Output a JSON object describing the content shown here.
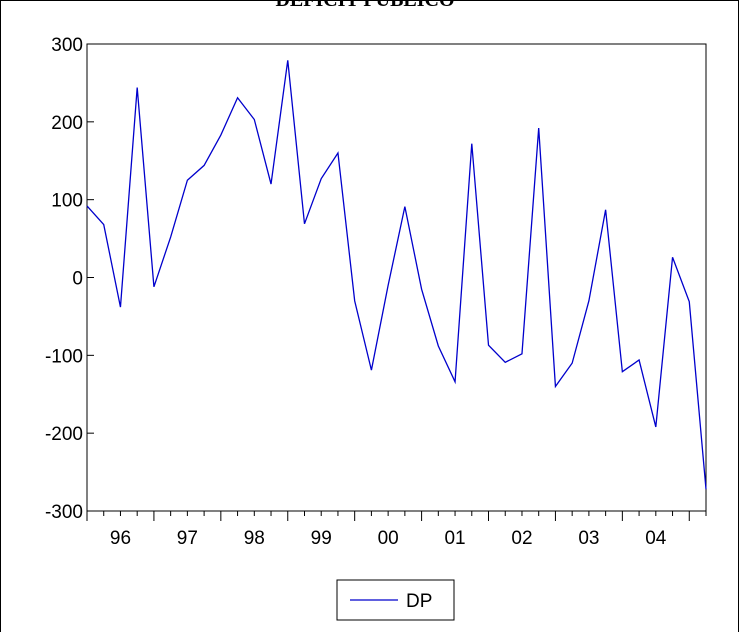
{
  "chart_data": {
    "type": "line",
    "title": "DEFICIT PUBLICO",
    "xlabel": "",
    "ylabel": "",
    "ylim": [
      -300,
      300
    ],
    "yticks": [
      300,
      200,
      100,
      0,
      -100,
      -200,
      -300
    ],
    "ytick_labels": [
      "300",
      "200",
      "100",
      "0",
      "-100",
      "-200",
      "-300"
    ],
    "xtick_labels": [
      "96",
      "97",
      "98",
      "99",
      "00",
      "01",
      "02",
      "03",
      "04"
    ],
    "frequency": "quarterly",
    "x": [
      "1996Q1",
      "1996Q2",
      "1996Q3",
      "1996Q4",
      "1997Q1",
      "1997Q2",
      "1997Q3",
      "1997Q4",
      "1998Q1",
      "1998Q2",
      "1998Q3",
      "1998Q4",
      "1999Q1",
      "1999Q2",
      "1999Q3",
      "1999Q4",
      "2000Q1",
      "2000Q2",
      "2000Q3",
      "2000Q4",
      "2001Q1",
      "2001Q2",
      "2001Q3",
      "2001Q4",
      "2002Q1",
      "2002Q2",
      "2002Q3",
      "2002Q4",
      "2003Q1",
      "2003Q2",
      "2003Q3",
      "2003Q4",
      "2004Q1",
      "2004Q2",
      "2004Q3",
      "2004Q4",
      "2005Q1",
      "2005Q2"
    ],
    "series": [
      {
        "name": "DP",
        "color": "#0000cc",
        "values": [
          92,
          68,
          -38,
          244,
          -12,
          52,
          125,
          144,
          183,
          231,
          203,
          120,
          279,
          69,
          127,
          160,
          -30,
          -119,
          -10,
          91,
          -15,
          -88,
          -134,
          172,
          -87,
          -109,
          -98,
          192,
          -140,
          -110,
          -30,
          87,
          -121,
          -106,
          -192,
          26,
          -31,
          -272
        ]
      }
    ],
    "legend_position": "bottom-center",
    "grid": false
  }
}
